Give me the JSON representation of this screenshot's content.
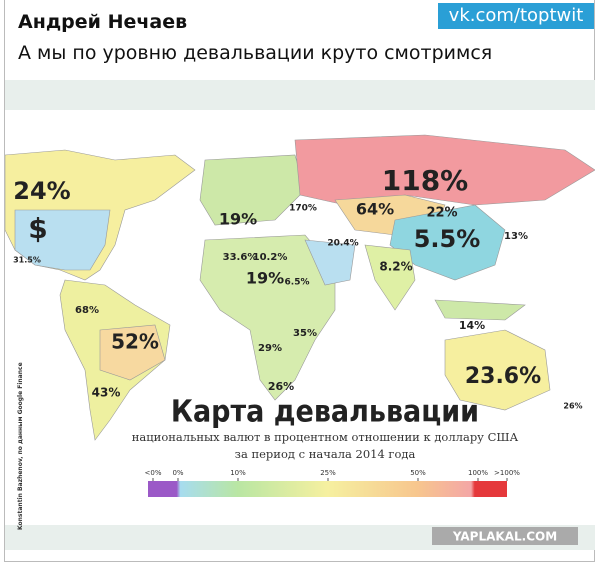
{
  "header": {
    "author": "Андрей Нечаев",
    "badge": "vk.com/toptwit",
    "text": "А мы по уровню девальвации круто смотримся"
  },
  "map": {
    "labels": [
      "118%",
      "64%",
      "22%",
      "5.5%",
      "13%",
      "24%",
      "$",
      "19%",
      "33.6%",
      "10.2%",
      "19%",
      "6.5%",
      "20.4%",
      "8.2%",
      "170%",
      "52%",
      "43%",
      "68%",
      "31.5%",
      "29%",
      "35%",
      "26%",
      "14%",
      "23.6%",
      "26%"
    ],
    "title": "Карта девальвации",
    "subtitle": [
      "национальных валют в процентном отношении к доллару США",
      "за период с начала 2014 года"
    ],
    "legend": [
      "<0%",
      "0%",
      "10%",
      "25%",
      "50%",
      "100%",
      ">100%"
    ],
    "source": "Konstantin Bazhenov, по данным Google Finance"
  },
  "watermark": "YAPLAKAL.COM"
}
